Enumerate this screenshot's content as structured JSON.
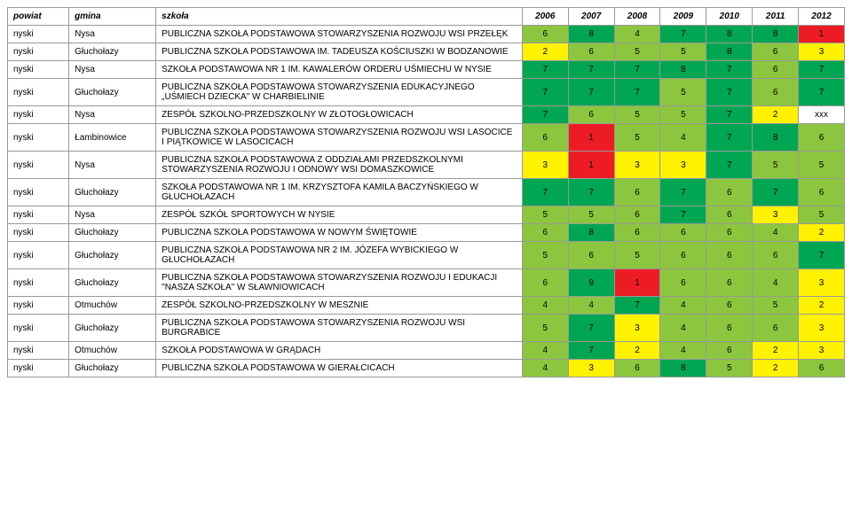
{
  "colors": {
    "green": "#00a651",
    "lime": "#8cc63f",
    "yellow": "#fff200",
    "red": "#ed1c24",
    "white": "#ffffff"
  },
  "colorMap": {
    "1": "red",
    "2": "yellow",
    "3": "yellow",
    "4": "lime",
    "5": "lime",
    "6": "lime",
    "7": "green",
    "8": "green",
    "9": "green",
    "xxx": "white"
  },
  "header": {
    "powiat": "powiat",
    "gmina": "gmina",
    "szkola": "szkoła",
    "years": [
      "2006",
      "2007",
      "2008",
      "2009",
      "2010",
      "2011",
      "2012"
    ]
  },
  "rows": [
    {
      "powiat": "nyski",
      "gmina": "Nysa",
      "szkola": "PUBLICZNA SZKOŁA PODSTAWOWA STOWARZYSZENIA ROZWOJU WSI PRZEŁĘK",
      "vals": [
        "6",
        "8",
        "4",
        "7",
        "8",
        "8",
        "1"
      ]
    },
    {
      "powiat": "nyski",
      "gmina": "Głuchołazy",
      "szkola": "PUBLICZNA SZKOŁA PODSTAWOWA IM. TADEUSZA KOŚCIUSZKI W BODZANOWIE",
      "vals": [
        "2",
        "6",
        "5",
        "5",
        "8",
        "6",
        "3"
      ]
    },
    {
      "powiat": "nyski",
      "gmina": "Nysa",
      "szkola": "SZKOŁA PODSTAWOWA NR 1 IM. KAWALERÓW ORDERU UŚMIECHU W NYSIE",
      "vals": [
        "7",
        "7",
        "7",
        "8",
        "7",
        "6",
        "7"
      ]
    },
    {
      "powiat": "nyski",
      "gmina": "Głuchołazy",
      "szkola": "PUBLICZNA SZKOŁA PODSTAWOWA STOWARZYSZENIA EDUKACYJNEGO „UŚMIECH DZIECKA\" W  CHARBIELINIE",
      "vals": [
        "7",
        "7",
        "7",
        "5",
        "7",
        "6",
        "7"
      ]
    },
    {
      "powiat": "nyski",
      "gmina": "Nysa",
      "szkola": "ZESPÓŁ SZKOLNO-PRZEDSZKOLNY W ZŁOTOGŁOWICACH",
      "vals": [
        "7",
        "6",
        "5",
        "5",
        "7",
        "2",
        "xxx"
      ]
    },
    {
      "powiat": "nyski",
      "gmina": "Łambinowice",
      "szkola": "PUBLICZNA SZKOŁA PODSTAWOWA STOWARZYSZENIA ROZWOJU WSI LASOCICE I PIĄTKOWICE W LASOCICACH",
      "vals": [
        "6",
        "1",
        "5",
        "4",
        "7",
        "8",
        "6"
      ]
    },
    {
      "powiat": "nyski",
      "gmina": "Nysa",
      "szkola": "PUBLICZNA SZKOŁA PODSTAWOWA Z ODDZIAŁAMI PRZEDSZKOLNYMI STOWARZYSZENIA ROZWOJU I ODNOWY WSI DOMASZKOWICE",
      "vals": [
        "3",
        "1",
        "3",
        "3",
        "7",
        "5",
        "5"
      ]
    },
    {
      "powiat": "nyski",
      "gmina": "Głuchołazy",
      "szkola": "SZKOŁA PODSTAWOWA NR 1 IM. KRZYSZTOFA KAMILA BACZYŃSKIEGO W GŁUCHOŁAZACH",
      "vals": [
        "7",
        "7",
        "6",
        "7",
        "6",
        "7",
        "6"
      ]
    },
    {
      "powiat": "nyski",
      "gmina": "Nysa",
      "szkola": "ZESPÓŁ SZKÓŁ SPORTOWYCH W NYSIE",
      "vals": [
        "5",
        "5",
        "6",
        "7",
        "6",
        "3",
        "5"
      ]
    },
    {
      "powiat": "nyski",
      "gmina": "Głuchołazy",
      "szkola": "PUBLICZNA SZKOŁA PODSTAWOWA W NOWYM ŚWIĘTOWIE",
      "vals": [
        "6",
        "8",
        "6",
        "6",
        "6",
        "4",
        "2"
      ]
    },
    {
      "powiat": "nyski",
      "gmina": "Głuchołazy",
      "szkola": "PUBLICZNA SZKOŁA PODSTAWOWA NR 2 IM. JÓZEFA WYBICKIEGO W GŁUCHOŁAZACH",
      "vals": [
        "5",
        "6",
        "5",
        "6",
        "6",
        "6",
        "7"
      ]
    },
    {
      "powiat": "nyski",
      "gmina": "Głuchołazy",
      "szkola": "PUBLICZNA SZKOŁA PODSTAWOWA STOWARZYSZENIA ROZWOJU I EDUKACJI \"NASZA SZKOŁA\" W SŁAWNIOWICACH",
      "vals": [
        "6",
        "9",
        "1",
        "6",
        "6",
        "4",
        "3"
      ]
    },
    {
      "powiat": "nyski",
      "gmina": "Otmuchów",
      "szkola": "ZESPÓŁ SZKOLNO-PRZEDSZKOLNY W MESZNIE",
      "vals": [
        "4",
        "4",
        "7",
        "4",
        "6",
        "5",
        "2"
      ]
    },
    {
      "powiat": "nyski",
      "gmina": "Głuchołazy",
      "szkola": "PUBLICZNA SZKOŁA PODSTAWOWA STOWARZYSZENIA ROZWOJU WSI BURGRABICE",
      "vals": [
        "5",
        "7",
        "3",
        "4",
        "6",
        "6",
        "3"
      ]
    },
    {
      "powiat": "nyski",
      "gmina": "Otmuchów",
      "szkola": "SZKOŁA PODSTAWOWA W GRĄDACH",
      "vals": [
        "4",
        "7",
        "2",
        "4",
        "6",
        "2",
        "3"
      ]
    },
    {
      "powiat": "nyski",
      "gmina": "Głuchołazy",
      "szkola": "PUBLICZNA SZKOŁA PODSTAWOWA W GIERAŁCICACH",
      "vals": [
        "4",
        "3",
        "6",
        "8",
        "5",
        "2",
        "6"
      ]
    }
  ]
}
